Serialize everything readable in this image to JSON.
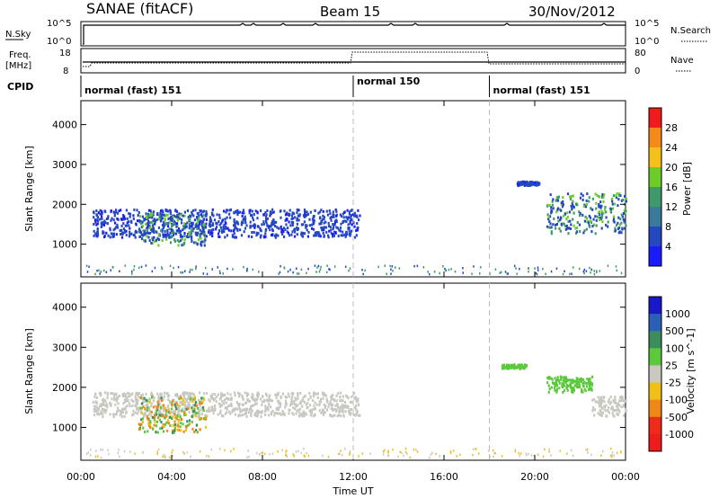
{
  "header": {
    "station": "SANAE (fitACF)",
    "beam": "Beam 15",
    "date": "30/Nov/2012"
  },
  "aux_panels": {
    "nsky_label": "N.Sky",
    "nsky_tick_top": "10^5",
    "nsky_tick_bottom": "10^0",
    "nsearch_label": "N.Search",
    "nsearch_tick_top": "10^5",
    "nsearch_tick_bottom": "10^0",
    "freq_label_1": "Freq.",
    "freq_label_2": "[MHz]",
    "freq_tick_top": "18",
    "freq_tick_bottom": "8",
    "nave_label": "Nave",
    "nave_tick_top": "80",
    "nave_tick_bottom": "0",
    "cpid_label": "CPID",
    "cpid_segments": [
      {
        "label": "normal (fast) 151",
        "start_hour": 0
      },
      {
        "label": "normal 150",
        "start_hour": 12
      },
      {
        "label": "normal (fast) 151",
        "start_hour": 18
      }
    ]
  },
  "chart_data": [
    {
      "type": "heatmap",
      "panel": "power",
      "ylabel": "Slant Range [km]",
      "xlabel": "",
      "ylim": [
        180,
        4600
      ],
      "xlim_hours": [
        0,
        24
      ],
      "y_ticks": [
        "1000",
        "2000",
        "3000",
        "4000"
      ],
      "colorbar": {
        "label": "Power [dB]",
        "tick_labels": [
          "4",
          "8",
          "12",
          "16",
          "20",
          "24",
          "28"
        ],
        "colors": [
          "#1a1aff",
          "#2448c0",
          "#3a7a9a",
          "#3f9a6a",
          "#6ccc2a",
          "#f2c21a",
          "#f58a1a",
          "#ee1c1c"
        ]
      },
      "echo_regions": [
        {
          "hours": [
            0.5,
            12.3
          ],
          "range_km": [
            1200,
            1900
          ],
          "level": "low"
        },
        {
          "hours": [
            2.5,
            5.5
          ],
          "range_km": [
            1000,
            1800
          ],
          "level": "medium"
        },
        {
          "hours": [
            20.5,
            24
          ],
          "range_km": [
            1300,
            2300
          ],
          "level": "medium"
        },
        {
          "hours": [
            19.2,
            20.2
          ],
          "range_km": [
            2500,
            2600
          ],
          "level": "low"
        }
      ]
    },
    {
      "type": "heatmap",
      "panel": "velocity",
      "ylabel": "Slant Range [km]",
      "xlabel": "Time UT",
      "ylim": [
        180,
        4600
      ],
      "xlim_hours": [
        0,
        24
      ],
      "y_ticks": [
        "1000",
        "2000",
        "3000",
        "4000"
      ],
      "x_ticks": [
        "00:00",
        "04:00",
        "08:00",
        "12:00",
        "16:00",
        "20:00",
        "00:00"
      ],
      "colorbar": {
        "label": "Velocity [m s^-1]",
        "tick_labels": [
          "1000",
          "500",
          "100",
          "25",
          "-25",
          "-100",
          "-500",
          "-1000"
        ],
        "colors": [
          "#1818c8",
          "#2c5fb8",
          "#3c8c5c",
          "#5cc83c",
          "#c8c8c0",
          "#f0c018",
          "#f08818",
          "#ee2a1a",
          "#ee1c1c"
        ]
      },
      "echo_regions": [
        {
          "hours": [
            0.5,
            12.3
          ],
          "range_km": [
            1300,
            1900
          ],
          "level": "ground"
        },
        {
          "hours": [
            2.5,
            5.5
          ],
          "range_km": [
            900,
            1800
          ],
          "level": "mixed"
        },
        {
          "hours": [
            20.5,
            22.5
          ],
          "range_km": [
            1900,
            2300
          ],
          "level": "positive"
        },
        {
          "hours": [
            22.5,
            24
          ],
          "range_km": [
            1300,
            1800
          ],
          "level": "ground"
        },
        {
          "hours": [
            18.5,
            19.6
          ],
          "range_km": [
            2500,
            2600
          ],
          "level": "positive"
        }
      ]
    }
  ]
}
